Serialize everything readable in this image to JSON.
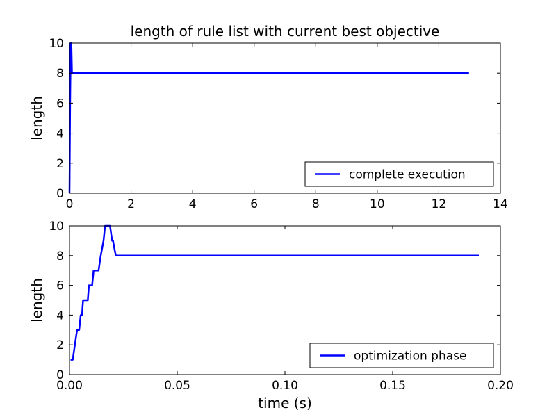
{
  "figure": {
    "title": "length of rule list with current best objective",
    "series_color": "#0000ff"
  },
  "chart_data": [
    {
      "type": "line",
      "title": "length of rule list with current best objective",
      "xlabel": "",
      "ylabel": "length",
      "xlim": [
        0,
        14
      ],
      "ylim": [
        0,
        10
      ],
      "xticks": [
        0,
        2,
        4,
        6,
        8,
        10,
        12,
        14
      ],
      "xtick_labels": [
        "0",
        "2",
        "4",
        "6",
        "8",
        "10",
        "12",
        "14"
      ],
      "yticks": [
        0,
        2,
        4,
        6,
        8,
        10
      ],
      "ytick_labels": [
        "0",
        "2",
        "4",
        "6",
        "8",
        "10"
      ],
      "grid": false,
      "legend_position": "lower right",
      "series": [
        {
          "name": "complete execution",
          "color": "#0000ff",
          "x": [
            0,
            0.01,
            0.02,
            0.04,
            0.06,
            0.08,
            12.98
          ],
          "y": [
            0,
            3,
            6,
            10,
            10,
            8,
            8
          ]
        }
      ]
    },
    {
      "type": "line",
      "title": "",
      "xlabel": "time (s)",
      "ylabel": "length",
      "xlim": [
        0,
        0.2
      ],
      "ylim": [
        0,
        10
      ],
      "xticks": [
        0,
        0.05,
        0.1,
        0.15,
        0.2
      ],
      "xtick_labels": [
        "0.00",
        "0.05",
        "0.10",
        "0.15",
        "0.20"
      ],
      "yticks": [
        0,
        2,
        4,
        6,
        8,
        10
      ],
      "ytick_labels": [
        "0",
        "2",
        "4",
        "6",
        "8",
        "10"
      ],
      "grid": false,
      "legend_position": "lower right",
      "series": [
        {
          "name": "optimization phase",
          "color": "#0000ff",
          "x": [
            0.0005,
            0.0015,
            0.0025,
            0.0035,
            0.0045,
            0.0052,
            0.0058,
            0.0063,
            0.007,
            0.0078,
            0.0085,
            0.009,
            0.0098,
            0.0105,
            0.0112,
            0.0125,
            0.0135,
            0.0145,
            0.0158,
            0.0165,
            0.0175,
            0.0188,
            0.0198,
            0.0202,
            0.0208,
            0.0215,
            0.19
          ],
          "y": [
            1,
            1,
            2,
            3,
            3,
            4,
            4,
            5,
            5,
            5,
            5,
            6,
            6,
            6,
            7,
            7,
            7,
            8,
            9,
            10,
            10,
            10,
            9,
            9,
            8.5,
            8,
            8
          ]
        }
      ]
    }
  ]
}
